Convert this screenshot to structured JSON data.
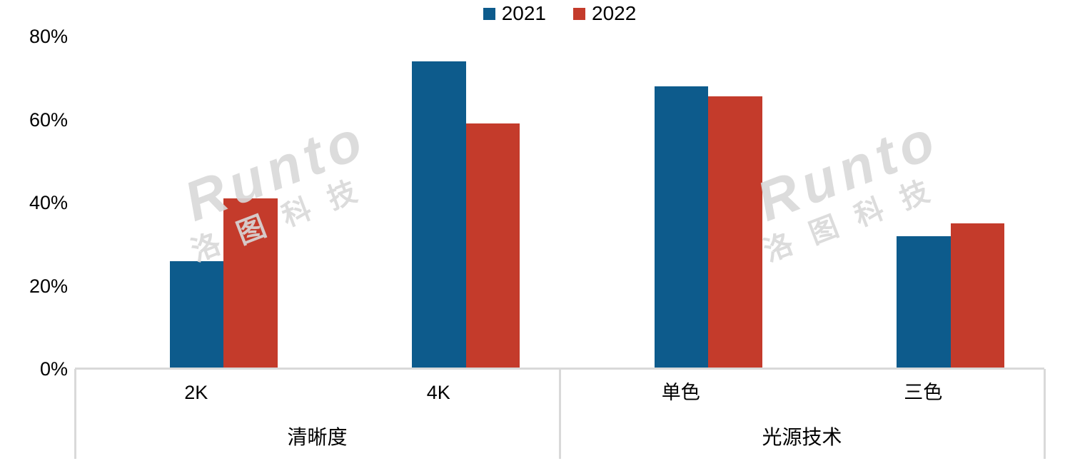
{
  "watermark": {
    "brand": "Runto",
    "cn": "洛图科技"
  },
  "chart_data": {
    "type": "bar",
    "title": "",
    "categories": [
      "2K",
      "4K",
      "单色",
      "三色"
    ],
    "groups": [
      {
        "label": "清晰度",
        "span": [
          0,
          2
        ]
      },
      {
        "label": "光源技术",
        "span": [
          2,
          4
        ]
      }
    ],
    "series": [
      {
        "name": "2021",
        "color": "#0d5b8c",
        "values": [
          26,
          74,
          68,
          32
        ]
      },
      {
        "name": "2022",
        "color": "#c43b2b",
        "values": [
          41,
          59,
          65.5,
          35
        ]
      }
    ],
    "ylim": [
      0,
      80
    ],
    "yticks": [
      {
        "value": 0,
        "label": "0%"
      },
      {
        "value": 20,
        "label": "20%"
      },
      {
        "value": 40,
        "label": "40%"
      },
      {
        "value": 60,
        "label": "60%"
      },
      {
        "value": 80,
        "label": "80%"
      }
    ],
    "grid": false,
    "legend_position": "top-center"
  }
}
